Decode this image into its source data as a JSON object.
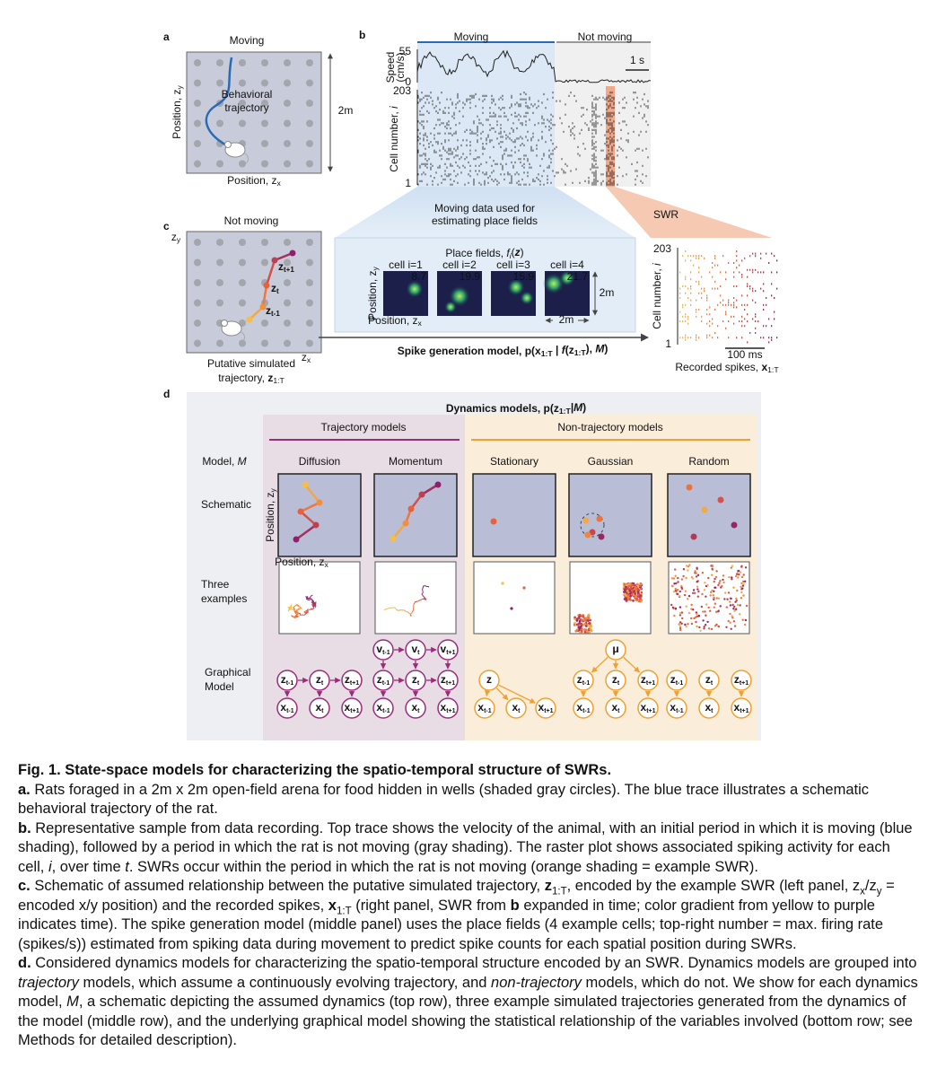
{
  "panel_a": {
    "letter": "a",
    "state": "Moving",
    "trajectory_label": [
      "Behavioral",
      "trajectory"
    ],
    "y_label": [
      "Position, z",
      "y"
    ],
    "x_label": [
      "Position, z",
      "x"
    ],
    "size": "2m"
  },
  "panel_b": {
    "letter": "b",
    "moving": "Moving",
    "not_moving": "Not moving",
    "speed_label": [
      "Speed",
      "(cm/s)"
    ],
    "speed_ticks": [
      "55",
      "0"
    ],
    "scale": "1 s",
    "cell_label": [
      "Cell number, ",
      "i"
    ],
    "cell_ticks": [
      "203",
      "1"
    ],
    "swr": "SWR",
    "moving_note": [
      "Moving data used for",
      "estimating place fields"
    ]
  },
  "place_fields": {
    "title": [
      "Place fields, ",
      "f",
      "i",
      "(",
      "z",
      ")"
    ],
    "cells": [
      {
        "label": "cell i=1",
        "max": "8.7"
      },
      {
        "label": "cell i=2",
        "max": "19.9"
      },
      {
        "label": "cell i=3",
        "max": "15.9"
      },
      {
        "label": "cell i=4",
        "max": "21.7"
      }
    ],
    "y_label": [
      "Position, z",
      "y"
    ],
    "x_label": [
      "Position, z",
      "x"
    ],
    "size": "2m"
  },
  "panel_c": {
    "letter": "c",
    "z_y": [
      "z",
      "y"
    ],
    "z_x": [
      "z",
      "x"
    ],
    "not_moving": "Not moving",
    "label_line1": "Putative simulated",
    "label_line2": [
      "trajectory, ",
      "z",
      "1:T"
    ],
    "spike_model": [
      "Spike generation model, p(",
      "x",
      "1:T",
      " | ",
      "f",
      "(",
      "z",
      "1:T",
      "), ",
      "M",
      ")"
    ],
    "cell_label": [
      "Cell number, ",
      "i"
    ],
    "cell_ticks": [
      "203",
      "1"
    ],
    "scale": "100 ms",
    "spikes_label": [
      "Recorded spikes, ",
      "x",
      "1:T"
    ]
  },
  "panel_d": {
    "letter": "d",
    "title": [
      "Dynamics models, p(",
      "z",
      "1:T",
      "|",
      "M",
      ")"
    ],
    "groups": [
      "Trajectory models",
      "Non-trajectory models"
    ],
    "row_model": [
      "Model, ",
      "M"
    ],
    "row_schematic": "Schematic",
    "row_examples": [
      "Three",
      "examples"
    ],
    "row_graphical": [
      "Graphical",
      "Model"
    ],
    "models": [
      "Diffusion",
      "Momentum",
      "Stationary",
      "Gaussian",
      "Random"
    ],
    "y_label": [
      "Position, z",
      "y"
    ],
    "x_label": [
      "Position, z",
      "x"
    ],
    "nodes": {
      "z": "z",
      "x": "x",
      "v": "v",
      "mu": "μ",
      "subs": [
        "t-1",
        "t",
        "t+1"
      ]
    }
  },
  "caption": {
    "title": "Fig. 1. State-space models for characterizing the spatio-temporal structure of SWRs.",
    "a": [
      "a.",
      " Rats foraged in a 2m x 2m open-field arena for food hidden in wells (shaded gray circles). The blue trace illustrates a schematic behavioral trajectory of the rat."
    ],
    "b": [
      "b.",
      " Representative sample from data recording. Top trace shows the velocity of the animal, with an initial period in which it is moving (blue shading), followed by a period in which the rat is not moving (gray shading). The raster plot shows associated spiking activity for each cell, ",
      "i",
      ", over time ",
      "t",
      ". SWRs occur within the period in which the rat is not moving (orange shading = example SWR)."
    ],
    "c": [
      "c.",
      " Schematic of assumed relationship between the putative simulated trajectory, ",
      "z",
      "1:T",
      ", encoded by the example SWR (left panel, z",
      "x",
      "/z",
      "y",
      " = encoded x/y position) and the recorded spikes, ",
      "x",
      "1:T",
      " (right panel, SWR from ",
      "b",
      " expanded in time; color gradient from yellow to purple indicates time). The spike generation model (middle panel) uses the place fields (4 example cells; top-right number = max. firing rate (spikes/s)) estimated from spiking data during movement to predict spike counts for each spatial position during SWRs."
    ],
    "d": [
      "d.",
      " Considered dynamics models for characterizing the spatio-temporal structure encoded by an SWR. Dynamics models are grouped into ",
      "trajectory",
      " models, which assume a continuously evolving trajectory, and ",
      "non-trajectory",
      " models, which do not. We show for each dynamics model, ",
      "M",
      ", a schematic depicting the assumed dynamics (top row), three example simulated trajectories generated from the dynamics of the model (middle row), and the underlying graphical model showing the statistical relationship of the variables involved (bottom row; see Methods for detailed description)."
    ]
  }
}
